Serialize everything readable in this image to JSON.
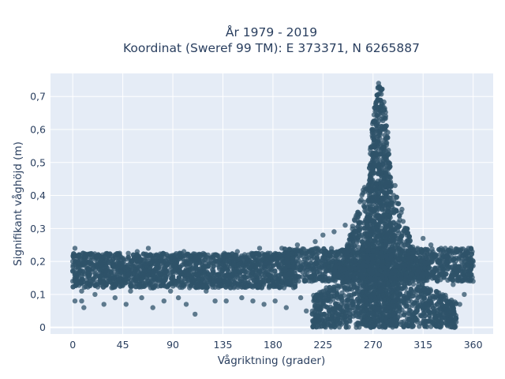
{
  "chart_data": {
    "type": "scatter",
    "title_line1": "År 1979 - 2019",
    "title_line2": "Koordinat (Sweref 99 TM): E 373371, N 6265887",
    "xlabel": "Vågriktning (grader)",
    "ylabel": "Signifikant våghöjd (m)",
    "xlim": [
      -20,
      378
    ],
    "ylim": [
      -0.02,
      0.77
    ],
    "x_ticks": [
      0,
      45,
      90,
      135,
      180,
      225,
      270,
      315,
      360
    ],
    "x_tick_labels": [
      "0",
      "45",
      "90",
      "135",
      "180",
      "225",
      "270",
      "315",
      "360"
    ],
    "y_ticks": [
      0,
      0.1,
      0.2,
      0.3,
      0.4,
      0.5,
      0.6,
      0.7
    ],
    "y_tick_labels": [
      "0",
      "0,1",
      "0,2",
      "0,3",
      "0,4",
      "0,5",
      "0,6",
      "0,7"
    ],
    "grid": true,
    "marker_color": "#2f5369",
    "background_color": "#e5ecf6",
    "series": [
      {
        "points": [
          [
            0,
            0.17
          ],
          [
            0,
            0.2
          ],
          [
            0,
            0.14
          ],
          [
            2,
            0.24
          ],
          [
            2,
            0.08
          ],
          [
            5,
            0.18
          ],
          [
            8,
            0.11
          ],
          [
            8,
            0.08
          ],
          [
            10,
            0.06
          ],
          [
            12,
            0.21
          ],
          [
            15,
            0.15
          ],
          [
            18,
            0.22
          ],
          [
            20,
            0.1
          ],
          [
            22,
            0.13
          ],
          [
            25,
            0.19
          ],
          [
            28,
            0.07
          ],
          [
            30,
            0.16
          ],
          [
            32,
            0.22
          ],
          [
            35,
            0.12
          ],
          [
            38,
            0.09
          ],
          [
            40,
            0.18
          ],
          [
            42,
            0.14
          ],
          [
            45,
            0.21
          ],
          [
            48,
            0.07
          ],
          [
            50,
            0.16
          ],
          [
            52,
            0.11
          ],
          [
            55,
            0.19
          ],
          [
            58,
            0.23
          ],
          [
            60,
            0.13
          ],
          [
            62,
            0.09
          ],
          [
            65,
            0.17
          ],
          [
            68,
            0.24
          ],
          [
            70,
            0.12
          ],
          [
            72,
            0.06
          ],
          [
            75,
            0.18
          ],
          [
            78,
            0.15
          ],
          [
            80,
            0.22
          ],
          [
            82,
            0.08
          ],
          [
            85,
            0.19
          ],
          [
            88,
            0.11
          ],
          [
            90,
            0.16
          ],
          [
            92,
            0.22
          ],
          [
            95,
            0.09
          ],
          [
            98,
            0.14
          ],
          [
            100,
            0.23
          ],
          [
            102,
            0.07
          ],
          [
            105,
            0.12
          ],
          [
            108,
            0.18
          ],
          [
            110,
            0.04
          ],
          [
            112,
            0.13
          ],
          [
            115,
            0.2
          ],
          [
            118,
            0.16
          ],
          [
            120,
            0.11
          ],
          [
            122,
            0.21
          ],
          [
            125,
            0.15
          ],
          [
            128,
            0.08
          ],
          [
            130,
            0.19
          ],
          [
            132,
            0.13
          ],
          [
            135,
            0.22
          ],
          [
            138,
            0.08
          ],
          [
            140,
            0.17
          ],
          [
            142,
            0.12
          ],
          [
            145,
            0.2
          ],
          [
            148,
            0.23
          ],
          [
            150,
            0.14
          ],
          [
            152,
            0.09
          ],
          [
            155,
            0.18
          ],
          [
            158,
            0.22
          ],
          [
            160,
            0.13
          ],
          [
            162,
            0.08
          ],
          [
            165,
            0.19
          ],
          [
            168,
            0.24
          ],
          [
            170,
            0.12
          ],
          [
            172,
            0.07
          ],
          [
            175,
            0.17
          ],
          [
            178,
            0.21
          ],
          [
            180,
            0.14
          ],
          [
            182,
            0.08
          ],
          [
            185,
            0.19
          ],
          [
            188,
            0.24
          ],
          [
            190,
            0.12
          ],
          [
            192,
            0.06
          ],
          [
            195,
            0.16
          ],
          [
            198,
            0.21
          ],
          [
            200,
            0.13
          ],
          [
            202,
            0.25
          ],
          [
            205,
            0.09
          ],
          [
            208,
            0.18
          ],
          [
            210,
            0.05
          ],
          [
            212,
            0.21
          ],
          [
            215,
            0.14
          ],
          [
            218,
            0.26
          ],
          [
            220,
            0.07
          ],
          [
            222,
            0.17
          ],
          [
            225,
            0.03
          ],
          [
            225,
            0.28
          ],
          [
            228,
            0.12
          ],
          [
            230,
            0.2
          ],
          [
            232,
            0.05
          ],
          [
            235,
            0.29
          ],
          [
            238,
            0.1
          ],
          [
            240,
            0.18
          ],
          [
            242,
            0.03
          ],
          [
            245,
            0.31
          ],
          [
            248,
            0.14
          ],
          [
            250,
            0.25
          ],
          [
            252,
            0.06
          ],
          [
            255,
            0.34
          ],
          [
            258,
            0.12
          ],
          [
            260,
            0.28
          ],
          [
            262,
            0.02
          ],
          [
            262,
            0.38
          ],
          [
            265,
            0.21
          ],
          [
            267,
            0.42
          ],
          [
            268,
            0.08
          ],
          [
            270,
            0.3
          ],
          [
            270,
            0.48
          ],
          [
            272,
            0.14
          ],
          [
            272,
            0.56
          ],
          [
            273,
            0.63
          ],
          [
            274,
            0.02
          ],
          [
            274,
            0.69
          ],
          [
            275,
            0.36
          ],
          [
            275,
            0.74
          ],
          [
            276,
            0.09
          ],
          [
            276,
            0.71
          ],
          [
            277,
            0.25
          ],
          [
            277,
            0.66
          ],
          [
            278,
            0.03
          ],
          [
            278,
            0.6
          ],
          [
            279,
            0.44
          ],
          [
            280,
            0.18
          ],
          [
            280,
            0.53
          ],
          [
            282,
            0.38
          ],
          [
            283,
            0.06
          ],
          [
            284,
            0.31
          ],
          [
            286,
            0.22
          ],
          [
            287,
            0.27
          ],
          [
            288,
            0.02
          ],
          [
            290,
            0.17
          ],
          [
            292,
            0.25
          ],
          [
            294,
            0.05
          ],
          [
            296,
            0.21
          ],
          [
            298,
            0.13
          ],
          [
            300,
            0.26
          ],
          [
            302,
            0.08
          ],
          [
            305,
            0.19
          ],
          [
            308,
            0.03
          ],
          [
            310,
            0.24
          ],
          [
            312,
            0.11
          ],
          [
            315,
            0.27
          ],
          [
            318,
            0.06
          ],
          [
            320,
            0.18
          ],
          [
            322,
            0.25
          ],
          [
            325,
            0.04
          ],
          [
            328,
            0.14
          ],
          [
            330,
            0.22
          ],
          [
            332,
            0.09
          ],
          [
            335,
            0.19
          ],
          [
            338,
            0.05
          ],
          [
            340,
            0.24
          ],
          [
            342,
            0.13
          ],
          [
            345,
            0.17
          ],
          [
            348,
            0.07
          ],
          [
            350,
            0.22
          ],
          [
            352,
            0.1
          ],
          [
            355,
            0.16
          ],
          [
            358,
            0.24
          ],
          [
            360,
            0.2
          ],
          [
            360,
            0.14
          ]
        ]
      }
    ]
  }
}
